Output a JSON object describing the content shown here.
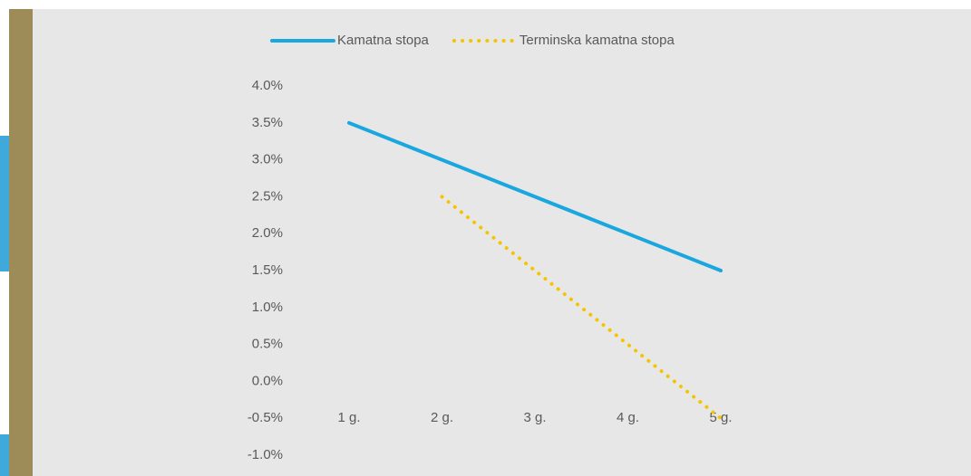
{
  "chart_data": {
    "type": "line",
    "categories": [
      "1 g.",
      "2 g.",
      "3 g.",
      "4 g.",
      "5 g."
    ],
    "series": [
      {
        "name": "Kamatna stopa",
        "color": "#1aa7e0",
        "values": [
          3.5,
          3.0,
          2.5,
          2.0,
          1.5
        ]
      },
      {
        "name": "Terminska kamatna stopa",
        "color": "#f5c400",
        "values": [
          null,
          2.5,
          1.5,
          0.5,
          -0.5
        ],
        "dash": "dotted"
      }
    ],
    "ylim": [
      -1,
      4
    ],
    "yticks": [
      {
        "value": -1,
        "label": "-1.0%"
      },
      {
        "value": -0.5,
        "label": "-0.5%"
      },
      {
        "value": 0,
        "label": "0.0%"
      },
      {
        "value": 0.5,
        "label": "0.5%"
      },
      {
        "value": 1,
        "label": "1.0%"
      },
      {
        "value": 1.5,
        "label": "1.5%"
      },
      {
        "value": 2,
        "label": "2.0%"
      },
      {
        "value": 2.5,
        "label": "2.5%"
      },
      {
        "value": 3,
        "label": "3.0%"
      },
      {
        "value": 3.5,
        "label": "3.5%"
      },
      {
        "value": 4,
        "label": "4.0%"
      }
    ],
    "grid": false,
    "legend": "top"
  }
}
